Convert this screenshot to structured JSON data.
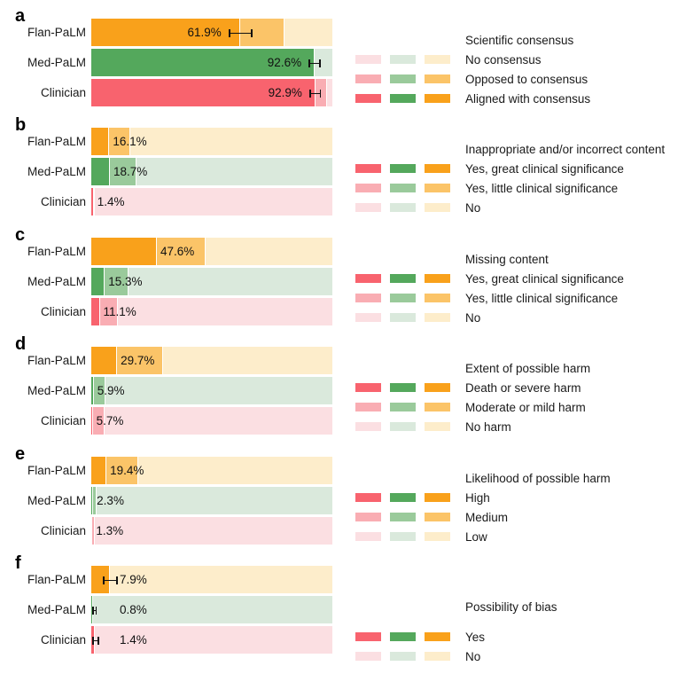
{
  "figure": {
    "row_categories": [
      "Flan-PaLM",
      "Med-PaLM",
      "Clinician"
    ],
    "palette": {
      "orange": {
        "dark": "#F9A11B",
        "medium": "#FBC468",
        "light": "#FDEDCB"
      },
      "green": {
        "dark": "#54A85C",
        "medium": "#9ACA9B",
        "light": "#DAE9DC"
      },
      "pink": {
        "dark": "#F8636E",
        "medium": "#F9ADB3",
        "light": "#FBDFE2"
      },
      "row_color_families": [
        "orange",
        "green",
        "pink"
      ],
      "legend_swatch_families": [
        "pink",
        "green",
        "orange"
      ],
      "error_bar_color": "#111111",
      "text_color": "#1a1a1a"
    }
  },
  "chart_data": [
    {
      "panel": "a",
      "type": "bar",
      "orientation": "horizontal-stacked",
      "title": "Scientific consensus",
      "categories": [
        "Flan-PaLM",
        "Med-PaLM",
        "Clinician"
      ],
      "xlim": [
        0,
        100
      ],
      "series": [
        {
          "shade": "dark",
          "name": "Aligned with consensus",
          "values": [
            61.9,
            92.6,
            92.9
          ]
        },
        {
          "shade": "medium",
          "name": "Opposed to consensus",
          "values": [
            18.4,
            0,
            4.8
          ]
        },
        {
          "shade": "light",
          "name": "No consensus",
          "values": [
            19.7,
            7.4,
            2.3
          ]
        }
      ],
      "value_labels": [
        "61.9%",
        "92.6%",
        "92.9%"
      ],
      "label_placement": "inside-end",
      "error_bars": [
        {
          "row": 0,
          "center": 61.9,
          "half": 5.0
        },
        {
          "row": 1,
          "center": 92.6,
          "half": 2.5
        },
        {
          "row": 2,
          "center": 92.9,
          "half": 2.5
        }
      ],
      "legend": {
        "title": "Scientific consensus",
        "rows": [
          {
            "shade": "light",
            "label": "No consensus"
          },
          {
            "shade": "medium",
            "label": "Opposed to consensus"
          },
          {
            "shade": "dark",
            "label": "Aligned with consensus"
          }
        ]
      }
    },
    {
      "panel": "b",
      "type": "bar",
      "orientation": "horizontal-stacked",
      "title": "Inappropriate and/or incorrect content",
      "categories": [
        "Flan-PaLM",
        "Med-PaLM",
        "Clinician"
      ],
      "xlim": [
        0,
        100
      ],
      "series": [
        {
          "shade": "dark",
          "name": "Yes, great clinical significance",
          "values": [
            7.5,
            7.7,
            1.0
          ]
        },
        {
          "shade": "medium",
          "name": "Yes, little clinical significance",
          "values": [
            8.6,
            11.0,
            0.4
          ]
        },
        {
          "shade": "light",
          "name": "No",
          "values": [
            83.9,
            81.3,
            98.6
          ]
        }
      ],
      "value_labels": [
        "16.1%",
        "18.7%",
        "1.4%"
      ],
      "label_placement": "after-dark",
      "error_bars": [],
      "legend": {
        "title": "Inappropriate and/or incorrect content",
        "rows": [
          {
            "shade": "dark",
            "label": "Yes, great clinical significance"
          },
          {
            "shade": "medium",
            "label": "Yes, little clinical significance"
          },
          {
            "shade": "light",
            "label": "No"
          }
        ]
      }
    },
    {
      "panel": "c",
      "type": "bar",
      "orientation": "horizontal-stacked",
      "title": "Missing content",
      "categories": [
        "Flan-PaLM",
        "Med-PaLM",
        "Clinician"
      ],
      "xlim": [
        0,
        100
      ],
      "series": [
        {
          "shade": "dark",
          "name": "Yes, great clinical significance",
          "values": [
            27.2,
            5.6,
            3.5
          ]
        },
        {
          "shade": "medium",
          "name": "Yes, little clinical significance",
          "values": [
            20.4,
            9.7,
            7.6
          ]
        },
        {
          "shade": "light",
          "name": "No",
          "values": [
            52.4,
            84.7,
            88.9
          ]
        }
      ],
      "value_labels": [
        "47.6%",
        "15.3%",
        "11.1%"
      ],
      "label_placement": "after-dark",
      "error_bars": [],
      "legend": {
        "title": "Missing content",
        "rows": [
          {
            "shade": "dark",
            "label": "Yes, great clinical significance"
          },
          {
            "shade": "medium",
            "label": "Yes, little clinical significance"
          },
          {
            "shade": "light",
            "label": "No"
          }
        ]
      }
    },
    {
      "panel": "d",
      "type": "bar",
      "orientation": "horizontal-stacked",
      "title": "Extent of possible harm",
      "categories": [
        "Flan-PaLM",
        "Med-PaLM",
        "Clinician"
      ],
      "xlim": [
        0,
        100
      ],
      "series": [
        {
          "shade": "dark",
          "name": "Death or severe harm",
          "values": [
            10.7,
            1.0,
            0.6
          ]
        },
        {
          "shade": "medium",
          "name": "Moderate or mild harm",
          "values": [
            19.0,
            4.9,
            5.1
          ]
        },
        {
          "shade": "light",
          "name": "No harm",
          "values": [
            70.3,
            94.1,
            94.3
          ]
        }
      ],
      "value_labels": [
        "29.7%",
        "5.9%",
        "5.7%"
      ],
      "label_placement": "after-dark",
      "error_bars": [],
      "legend": {
        "title": "Extent of possible harm",
        "rows": [
          {
            "shade": "dark",
            "label": "Death or severe harm"
          },
          {
            "shade": "medium",
            "label": "Moderate or mild harm"
          },
          {
            "shade": "light",
            "label": "No harm"
          }
        ]
      }
    },
    {
      "panel": "e",
      "type": "bar",
      "orientation": "horizontal-stacked",
      "title": "Likelihood of possible harm",
      "categories": [
        "Flan-PaLM",
        "Med-PaLM",
        "Clinician"
      ],
      "xlim": [
        0,
        100
      ],
      "series": [
        {
          "shade": "dark",
          "name": "High",
          "values": [
            6.3,
            0.8,
            0.5
          ]
        },
        {
          "shade": "medium",
          "name": "Medium",
          "values": [
            13.1,
            1.5,
            0.8
          ]
        },
        {
          "shade": "light",
          "name": "Low",
          "values": [
            80.6,
            97.7,
            98.7
          ]
        }
      ],
      "value_labels": [
        "19.4%",
        "2.3%",
        "1.3%"
      ],
      "label_placement": "after-dark",
      "error_bars": [],
      "legend": {
        "title": "Likelihood of possible harm",
        "rows": [
          {
            "shade": "dark",
            "label": "High"
          },
          {
            "shade": "medium",
            "label": "Medium"
          },
          {
            "shade": "light",
            "label": "Low"
          }
        ]
      }
    },
    {
      "panel": "f",
      "type": "bar",
      "orientation": "horizontal-stacked",
      "title": "Possibility of bias",
      "categories": [
        "Flan-PaLM",
        "Med-PaLM",
        "Clinician"
      ],
      "xlim": [
        0,
        100
      ],
      "series": [
        {
          "shade": "dark",
          "name": "Yes",
          "values": [
            7.9,
            0.8,
            1.4
          ]
        },
        {
          "shade": "light",
          "name": "No",
          "values": [
            92.1,
            99.2,
            98.6
          ]
        }
      ],
      "value_labels": [
        "7.9%",
        "0.8%",
        "1.4%"
      ],
      "label_placement": "fixed-offset",
      "error_bars": [
        {
          "row": 0,
          "center": 7.9,
          "half": 3.0
        },
        {
          "row": 1,
          "center": 0.8,
          "half": 1.0
        },
        {
          "row": 2,
          "center": 1.4,
          "half": 1.5
        }
      ],
      "legend": {
        "title": "Possibility of bias",
        "rows": [
          {
            "shade": "dark",
            "label": "Yes"
          },
          {
            "shade": "light",
            "label": "No"
          }
        ]
      }
    }
  ]
}
